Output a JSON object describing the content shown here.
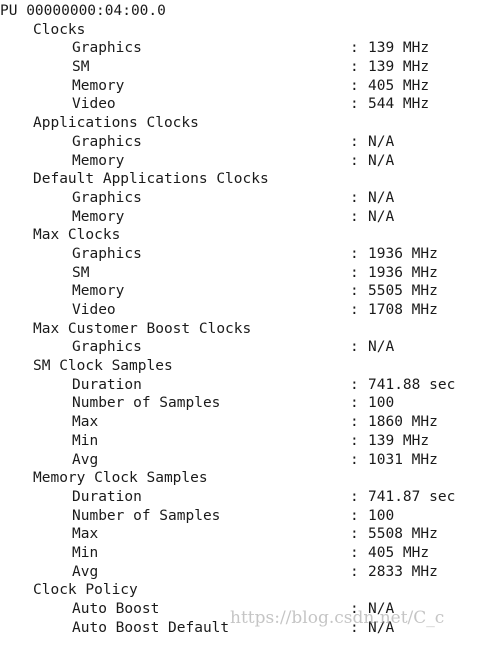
{
  "header": "PU 00000000:04:00.0",
  "sections": [
    {
      "title": "Clocks",
      "rows": [
        {
          "label": "Graphics",
          "value": "139 MHz"
        },
        {
          "label": "SM",
          "value": "139 MHz"
        },
        {
          "label": "Memory",
          "value": "405 MHz"
        },
        {
          "label": "Video",
          "value": "544 MHz"
        }
      ]
    },
    {
      "title": "Applications Clocks",
      "rows": [
        {
          "label": "Graphics",
          "value": "N/A"
        },
        {
          "label": "Memory",
          "value": "N/A"
        }
      ]
    },
    {
      "title": "Default Applications Clocks",
      "rows": [
        {
          "label": "Graphics",
          "value": "N/A"
        },
        {
          "label": "Memory",
          "value": "N/A"
        }
      ]
    },
    {
      "title": "Max Clocks",
      "rows": [
        {
          "label": "Graphics",
          "value": "1936 MHz"
        },
        {
          "label": "SM",
          "value": "1936 MHz"
        },
        {
          "label": "Memory",
          "value": "5505 MHz"
        },
        {
          "label": "Video",
          "value": "1708 MHz"
        }
      ]
    },
    {
      "title": "Max Customer Boost Clocks",
      "rows": [
        {
          "label": "Graphics",
          "value": "N/A"
        }
      ]
    },
    {
      "title": "SM Clock Samples",
      "rows": [
        {
          "label": "Duration",
          "value": "741.88 sec"
        },
        {
          "label": "Number of Samples",
          "value": "100"
        },
        {
          "label": "Max",
          "value": "1860 MHz"
        },
        {
          "label": "Min",
          "value": "139 MHz"
        },
        {
          "label": "Avg",
          "value": "1031 MHz"
        }
      ]
    },
    {
      "title": "Memory Clock Samples",
      "rows": [
        {
          "label": "Duration",
          "value": "741.87 sec"
        },
        {
          "label": "Number of Samples",
          "value": "100"
        },
        {
          "label": "Max",
          "value": "5508 MHz"
        },
        {
          "label": "Min",
          "value": "405 MHz"
        },
        {
          "label": "Avg",
          "value": "2833 MHz"
        }
      ]
    },
    {
      "title": "Clock Policy",
      "rows": [
        {
          "label": "Auto Boost",
          "value": "N/A"
        },
        {
          "label": "Auto Boost Default",
          "value": "N/A"
        }
      ]
    }
  ],
  "separator": ":",
  "watermark": "https://blog.csdn.net/C_c"
}
